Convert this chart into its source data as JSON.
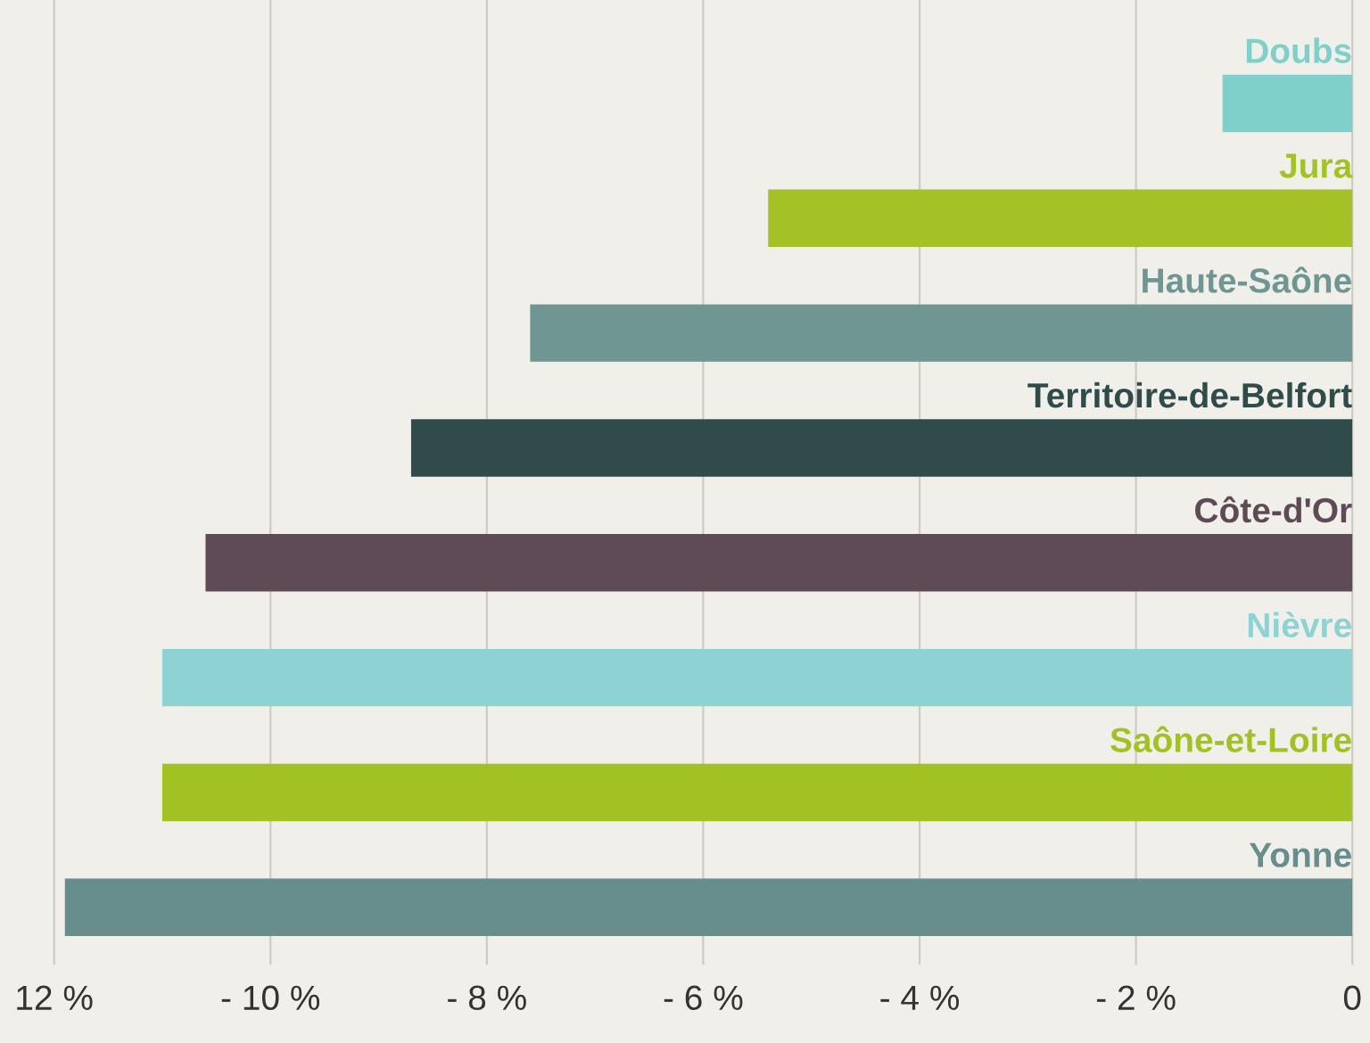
{
  "chart_data": {
    "type": "bar",
    "orientation": "horizontal",
    "categories": [
      "Doubs",
      "Jura",
      "Haute-Saône",
      "Territoire-de-Belfort",
      "Côte-d'Or",
      "Nièvre",
      "Saône-et-Loire",
      "Yonne"
    ],
    "values": [
      -1.2,
      -5.4,
      -7.6,
      -8.7,
      -10.6,
      -11.0,
      -11.0,
      -11.9
    ],
    "colors": [
      "#7fcfca",
      "#a4c226",
      "#6f9692",
      "#2f4b4a",
      "#5f4b56",
      "#8ed2d3",
      "#a2c224",
      "#678e8d"
    ],
    "xlim": [
      -12.5,
      0.1
    ],
    "xticks": [
      {
        "value": -12,
        "label": "12 %"
      },
      {
        "value": -10,
        "label": "- 10 %"
      },
      {
        "value": -8,
        "label": "- 8 %"
      },
      {
        "value": -6,
        "label": "- 6 %"
      },
      {
        "value": -4,
        "label": "- 4 %"
      },
      {
        "value": -2,
        "label": "- 2 %"
      },
      0
    ],
    "grid": "x"
  }
}
